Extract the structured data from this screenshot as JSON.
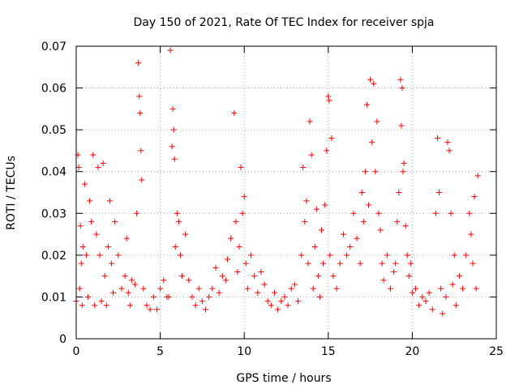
{
  "chart_data": {
    "type": "scatter",
    "title": "Day 150 of 2021, Rate Of TEC Index for receiver spja",
    "xlabel": "GPS time / hours",
    "ylabel": "ROTI / TECUs",
    "xlim": [
      0,
      25
    ],
    "ylim": [
      0,
      0.07
    ],
    "xticks": [
      0,
      5,
      10,
      15,
      20,
      25
    ],
    "yticks": [
      0,
      0.01,
      0.02,
      0.03,
      0.04,
      0.05,
      0.06,
      0.07
    ],
    "xtick_labels": [
      "0",
      "5",
      "10",
      "15",
      "20",
      "25"
    ],
    "ytick_labels": [
      "0",
      "0.01",
      "0.02",
      "0.03",
      "0.04",
      "0.05",
      "0.06",
      "0.07"
    ],
    "grid": true,
    "marker": "plus",
    "color": "#ff0000",
    "series": [
      {
        "name": "ROTI",
        "x": [
          0.0,
          0.1,
          0.15,
          0.2,
          0.25,
          0.3,
          0.35,
          0.4,
          0.5,
          0.6,
          0.7,
          0.8,
          0.9,
          1.0,
          1.1,
          1.2,
          1.3,
          1.4,
          1.5,
          1.6,
          1.7,
          1.8,
          1.9,
          2.0,
          2.1,
          2.2,
          2.3,
          2.5,
          2.7,
          2.9,
          3.0,
          3.1,
          3.2,
          3.3,
          3.5,
          3.6,
          3.7,
          3.75,
          3.8,
          3.85,
          3.9,
          4.0,
          4.2,
          4.4,
          4.6,
          4.8,
          5.0,
          5.2,
          5.4,
          5.5,
          5.6,
          5.7,
          5.75,
          5.8,
          5.85,
          5.9,
          6.0,
          6.1,
          6.2,
          6.3,
          6.5,
          6.7,
          6.9,
          7.1,
          7.3,
          7.5,
          7.7,
          7.9,
          8.1,
          8.3,
          8.5,
          8.7,
          8.9,
          9.0,
          9.2,
          9.4,
          9.5,
          9.6,
          9.7,
          9.8,
          9.9,
          10.0,
          10.1,
          10.2,
          10.4,
          10.6,
          10.8,
          11.0,
          11.2,
          11.4,
          11.6,
          11.8,
          12.0,
          12.2,
          12.4,
          12.6,
          12.8,
          13.0,
          13.2,
          13.4,
          13.5,
          13.6,
          13.7,
          13.8,
          13.9,
          14.0,
          14.1,
          14.2,
          14.3,
          14.4,
          14.5,
          14.6,
          14.7,
          14.8,
          14.9,
          15.0,
          15.05,
          15.1,
          15.2,
          15.3,
          15.5,
          15.7,
          15.9,
          16.1,
          16.3,
          16.5,
          16.7,
          16.9,
          17.0,
          17.1,
          17.2,
          17.3,
          17.4,
          17.5,
          17.6,
          17.7,
          17.8,
          17.9,
          18.0,
          18.1,
          18.2,
          18.3,
          18.5,
          18.7,
          18.9,
          19.0,
          19.1,
          19.2,
          19.3,
          19.35,
          19.4,
          19.45,
          19.5,
          19.6,
          19.7,
          19.8,
          19.9,
          20.0,
          20.2,
          20.4,
          20.6,
          20.8,
          21.0,
          21.2,
          21.4,
          21.5,
          21.6,
          21.7,
          21.8,
          22.0,
          22.1,
          22.2,
          22.3,
          22.4,
          22.5,
          22.6,
          22.8,
          23.0,
          23.2,
          23.4,
          23.5,
          23.6,
          23.7,
          23.8,
          23.9
        ],
        "y": [
          0.009,
          0.044,
          0.041,
          0.012,
          0.027,
          0.018,
          0.008,
          0.022,
          0.037,
          0.02,
          0.01,
          0.033,
          0.028,
          0.044,
          0.008,
          0.025,
          0.041,
          0.02,
          0.009,
          0.042,
          0.015,
          0.008,
          0.022,
          0.033,
          0.018,
          0.011,
          0.028,
          0.02,
          0.012,
          0.015,
          0.024,
          0.011,
          0.008,
          0.014,
          0.013,
          0.03,
          0.066,
          0.058,
          0.054,
          0.045,
          0.038,
          0.012,
          0.008,
          0.007,
          0.01,
          0.007,
          0.012,
          0.014,
          0.01,
          0.01,
          0.069,
          0.046,
          0.055,
          0.05,
          0.043,
          0.022,
          0.03,
          0.028,
          0.02,
          0.015,
          0.025,
          0.014,
          0.01,
          0.008,
          0.012,
          0.009,
          0.007,
          0.01,
          0.012,
          0.017,
          0.011,
          0.015,
          0.014,
          0.019,
          0.024,
          0.054,
          0.028,
          0.016,
          0.022,
          0.041,
          0.03,
          0.034,
          0.018,
          0.012,
          0.02,
          0.015,
          0.011,
          0.016,
          0.013,
          0.009,
          0.008,
          0.011,
          0.007,
          0.009,
          0.01,
          0.008,
          0.012,
          0.013,
          0.009,
          0.02,
          0.041,
          0.028,
          0.033,
          0.018,
          0.052,
          0.044,
          0.012,
          0.022,
          0.031,
          0.015,
          0.01,
          0.026,
          0.018,
          0.032,
          0.045,
          0.058,
          0.057,
          0.02,
          0.048,
          0.015,
          0.012,
          0.018,
          0.025,
          0.02,
          0.022,
          0.03,
          0.024,
          0.018,
          0.035,
          0.028,
          0.04,
          0.056,
          0.032,
          0.062,
          0.047,
          0.061,
          0.04,
          0.052,
          0.03,
          0.026,
          0.018,
          0.014,
          0.02,
          0.012,
          0.016,
          0.018,
          0.028,
          0.035,
          0.062,
          0.051,
          0.06,
          0.04,
          0.042,
          0.027,
          0.02,
          0.015,
          0.018,
          0.011,
          0.012,
          0.008,
          0.01,
          0.009,
          0.011,
          0.007,
          0.03,
          0.048,
          0.035,
          0.012,
          0.006,
          0.01,
          0.047,
          0.045,
          0.03,
          0.013,
          0.02,
          0.008,
          0.015,
          0.012,
          0.02,
          0.03,
          0.025,
          0.018,
          0.034,
          0.012,
          0.039
        ]
      }
    ]
  }
}
